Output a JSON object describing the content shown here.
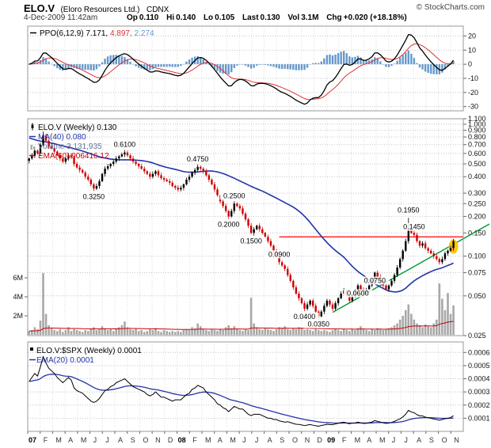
{
  "header": {
    "symbol": "ELO.V",
    "company": "(Eloro Resources Ltd.)",
    "exchange": "CDNX",
    "copyright": "© StockCharts.com",
    "datetime": "4-Dec-2009 11:42am",
    "quote": [
      {
        "label": "Op",
        "value": "0.110"
      },
      {
        "label": "Hi",
        "value": "0.140"
      },
      {
        "label": "Lo",
        "value": "0.105"
      },
      {
        "label": "Last",
        "value": "0.130"
      },
      {
        "label": "Vol",
        "value": "3.1M"
      },
      {
        "label": "Chg",
        "value": "+0.020 (+18.18%)"
      }
    ]
  },
  "colors": {
    "up": "#000000",
    "down": "#cc0000",
    "ma": "#2233aa",
    "vol_bar": "#a8a8a8",
    "vol_ema": "#cc0000",
    "vol_legend": "#667799",
    "ppo_line": "#000000",
    "ppo_signal": "#dd3333",
    "ppo_hist": "#6699cc",
    "ratio_line": "#000000",
    "ratio_ema": "#2233aa",
    "resistance": "#ff0000",
    "trendline": "#009933",
    "highlight": "#ffc20e",
    "grid": "#c4c4c4",
    "month_grid": "#dcdcdc",
    "border": "#999999",
    "tick_text": "#111111"
  },
  "panels": {
    "ppo": {
      "legend_name": "PPO(6,12,9)",
      "legend_values": [
        "7.171",
        "4.897",
        "2.274"
      ],
      "yticks": [
        "20",
        "10",
        "0",
        "-10",
        "-20",
        "-30"
      ]
    },
    "price": {
      "legend_rows": [
        {
          "text": "ELO.V (Weekly) 0.130"
        },
        {
          "text": "MA(40) 0.080"
        },
        {
          "text": "Volume 3,131,935"
        },
        {
          "text": "EMA(60) 906416.12"
        }
      ],
      "yticks": [
        "1.100",
        "1.000",
        "0.900",
        "0.800",
        "0.700",
        "0.600",
        "0.500",
        "0.400",
        "0.300",
        "0.250",
        "0.200",
        "0.150",
        "0.100",
        "0.075",
        "0.050",
        "0.025"
      ],
      "vol_ticks": [
        {
          "t": "6M",
          "v": 6
        },
        {
          "t": "4M",
          "v": 4
        },
        {
          "t": "2M",
          "v": 2
        }
      ]
    },
    "ratio": {
      "legend_rows": [
        {
          "text": "ELO.V:$SPX (Weekly) 0.0001"
        },
        {
          "text": "EMA(20) 0.0001"
        }
      ],
      "yticks": [
        "0.0006",
        "0.0005",
        "0.0004",
        "0.0003",
        "0.0002",
        "0.0001"
      ]
    }
  },
  "x_axis": {
    "labels": [
      "07",
      "F",
      "M",
      "A",
      "M",
      "J",
      "J",
      "A",
      "S",
      "O",
      "N",
      "D",
      "08",
      "F",
      "M",
      "A",
      "M",
      "J",
      "J",
      "A",
      "S",
      "O",
      "N",
      "D",
      "09",
      "F",
      "M",
      "A",
      "M",
      "J",
      "J",
      "A",
      "S",
      "O",
      "N"
    ]
  },
  "chart_data": {
    "type": "candlestick",
    "freq": "weekly",
    "range": "Jan 2007 - Dec 2009",
    "price_axis_log_range": [
      0.025,
      1.1
    ],
    "overlays": {
      "ma_period": 40,
      "volume_ema_period": 60,
      "ppo_params": [
        6,
        12,
        9
      ],
      "ratio_ema_period": 20
    },
    "close": [
      0.55,
      0.58,
      0.63,
      0.6,
      0.7,
      0.82,
      0.75,
      0.68,
      0.66,
      0.62,
      0.58,
      0.55,
      0.52,
      0.55,
      0.58,
      0.56,
      0.5,
      0.47,
      0.45,
      0.43,
      0.4,
      0.38,
      0.35,
      0.325,
      0.34,
      0.37,
      0.42,
      0.46,
      0.48,
      0.5,
      0.52,
      0.55,
      0.57,
      0.59,
      0.61,
      0.58,
      0.55,
      0.52,
      0.5,
      0.48,
      0.46,
      0.44,
      0.42,
      0.4,
      0.42,
      0.44,
      0.41,
      0.39,
      0.38,
      0.37,
      0.36,
      0.34,
      0.33,
      0.32,
      0.33,
      0.35,
      0.38,
      0.4,
      0.43,
      0.45,
      0.475,
      0.46,
      0.44,
      0.41,
      0.38,
      0.35,
      0.32,
      0.29,
      0.26,
      0.24,
      0.22,
      0.2,
      0.22,
      0.25,
      0.24,
      0.23,
      0.21,
      0.19,
      0.17,
      0.15,
      0.16,
      0.17,
      0.16,
      0.15,
      0.14,
      0.13,
      0.12,
      0.11,
      0.1,
      0.09,
      0.085,
      0.08,
      0.072,
      0.065,
      0.058,
      0.052,
      0.048,
      0.044,
      0.04,
      0.043,
      0.046,
      0.042,
      0.038,
      0.035,
      0.038,
      0.042,
      0.046,
      0.043,
      0.04,
      0.044,
      0.048,
      0.052,
      0.055,
      0.05,
      0.046,
      0.05,
      0.055,
      0.06,
      0.056,
      0.052,
      0.056,
      0.06,
      0.065,
      0.075,
      0.07,
      0.065,
      0.06,
      0.056,
      0.06,
      0.065,
      0.072,
      0.082,
      0.095,
      0.11,
      0.13,
      0.16,
      0.15,
      0.145,
      0.13,
      0.12,
      0.125,
      0.115,
      0.11,
      0.105,
      0.1,
      0.095,
      0.09,
      0.095,
      0.105,
      0.11,
      0.115,
      0.13
    ],
    "high_overrides": {
      "6": 0.88,
      "136": 0.195
    },
    "volume_m": [
      0.4,
      0.5,
      0.8,
      0.6,
      1.5,
      6.5,
      2.2,
      1.0,
      0.7,
      0.5,
      0.4,
      0.6,
      0.3,
      0.5,
      0.8,
      0.4,
      0.6,
      0.5,
      0.4,
      0.3,
      0.5,
      0.4,
      0.6,
      0.8,
      0.5,
      0.6,
      0.9,
      0.7,
      0.5,
      0.6,
      0.4,
      0.7,
      0.8,
      1.0,
      1.4,
      0.8,
      0.6,
      0.5,
      0.7,
      0.4,
      0.5,
      0.3,
      0.4,
      0.6,
      0.5,
      0.7,
      0.4,
      0.3,
      0.5,
      0.4,
      0.3,
      0.4,
      0.3,
      0.4,
      0.3,
      0.5,
      0.6,
      0.5,
      0.8,
      0.7,
      1.2,
      0.9,
      0.6,
      0.5,
      0.4,
      0.6,
      0.5,
      0.4,
      0.6,
      0.5,
      0.8,
      1.0,
      0.7,
      0.9,
      0.6,
      0.5,
      0.4,
      0.6,
      0.5,
      3.9,
      1.2,
      0.8,
      0.6,
      0.5,
      0.7,
      0.6,
      0.5,
      0.4,
      0.6,
      0.8,
      0.7,
      0.9,
      0.6,
      0.5,
      0.7,
      0.6,
      0.8,
      0.7,
      0.5,
      0.6,
      0.5,
      0.4,
      0.6,
      0.5,
      0.4,
      0.5,
      0.4,
      0.3,
      0.5,
      0.6,
      0.5,
      0.4,
      0.6,
      0.5,
      0.4,
      0.6,
      0.5,
      0.7,
      0.9,
      0.6,
      0.5,
      0.4,
      0.6,
      0.5,
      0.7,
      0.6,
      0.5,
      0.6,
      0.7,
      0.8,
      1.0,
      1.2,
      1.6,
      2.0,
      2.6,
      3.2,
      2.2,
      1.6,
      1.2,
      1.0,
      0.8,
      1.1,
      0.9,
      0.8,
      1.2,
      1.6,
      5.4,
      3.8,
      2.6,
      4.4,
      2.2,
      3.1
    ],
    "pre_close": [
      1.1,
      1.08,
      1.05,
      1.07,
      1.02,
      1.0,
      0.98,
      1.0,
      0.96,
      0.93,
      0.95,
      0.9,
      0.88,
      0.9,
      0.86,
      0.84,
      0.86,
      0.82,
      0.8,
      0.82,
      0.78,
      0.76,
      0.78,
      0.74,
      0.72,
      0.74,
      0.7,
      0.68,
      0.7,
      0.66,
      0.64,
      0.66,
      0.62,
      0.6,
      0.62,
      0.58,
      0.56,
      0.58,
      0.55,
      0.56
    ],
    "ratio_unit": 0.0001,
    "ratio_x10k": [
      3.8,
      4.1,
      4.4,
      4.2,
      4.9,
      5.7,
      5.2,
      4.8,
      4.6,
      4.4,
      4.1,
      3.9,
      3.7,
      3.9,
      4.1,
      3.9,
      3.3,
      3.1,
      3.0,
      2.9,
      2.7,
      2.5,
      2.3,
      2.2,
      2.3,
      2.5,
      2.8,
      3.1,
      3.2,
      3.4,
      3.5,
      3.7,
      3.8,
      3.9,
      4.0,
      3.8,
      3.6,
      3.4,
      3.3,
      3.2,
      3.1,
      3.0,
      2.8,
      2.7,
      2.8,
      3.0,
      2.8,
      2.6,
      2.6,
      2.5,
      2.4,
      2.3,
      2.4,
      2.4,
      2.4,
      2.6,
      2.8,
      2.9,
      3.2,
      3.3,
      3.5,
      3.4,
      3.3,
      3.0,
      2.8,
      2.6,
      2.4,
      2.1,
      2.0,
      1.8,
      1.7,
      1.5,
      1.7,
      1.9,
      1.8,
      1.7,
      1.7,
      1.5,
      1.3,
      1.2,
      1.3,
      1.3,
      1.3,
      1.2,
      1.1,
      1.0,
      1.0,
      0.9,
      0.9,
      0.8,
      0.75,
      0.7,
      0.74,
      0.67,
      0.6,
      0.54,
      0.53,
      0.49,
      0.44,
      0.48,
      0.52,
      0.47,
      0.43,
      0.39,
      0.45,
      0.49,
      0.54,
      0.51,
      0.51,
      0.56,
      0.62,
      0.67,
      0.7,
      0.63,
      0.58,
      0.63,
      0.64,
      0.7,
      0.65,
      0.6,
      0.62,
      0.66,
      0.71,
      0.82,
      0.76,
      0.71,
      0.65,
      0.61,
      0.63,
      0.68,
      0.76,
      0.86,
      0.95,
      1.1,
      1.3,
      1.6,
      1.47,
      1.42,
      1.27,
      1.18,
      1.18,
      1.08,
      1.04,
      0.99,
      0.94,
      0.9,
      0.85,
      0.9,
      0.96,
      1.0,
      1.05,
      1.19
    ],
    "annotations": {
      "price_labels": [
        {
          "week": 35,
          "price": 0.61,
          "pos": "above",
          "text": "0.6100"
        },
        {
          "week": 24,
          "price": 0.325,
          "pos": "below",
          "text": "0.3250"
        },
        {
          "week": 61,
          "price": 0.475,
          "pos": "above",
          "text": "0.4750"
        },
        {
          "week": 74,
          "price": 0.25,
          "pos": "above",
          "text": "0.2500"
        },
        {
          "week": 72,
          "price": 0.2,
          "pos": "below",
          "text": "0.2000"
        },
        {
          "week": 80,
          "price": 0.15,
          "pos": "below",
          "text": "0.1500"
        },
        {
          "week": 90,
          "price": 0.09,
          "pos": "above",
          "text": "0.0900"
        },
        {
          "week": 99,
          "price": 0.04,
          "pos": "below",
          "text": "0.0400"
        },
        {
          "week": 104,
          "price": 0.035,
          "pos": "below",
          "text": "0.0350"
        },
        {
          "week": 118,
          "price": 0.06,
          "pos": "below",
          "text": "0.0600"
        },
        {
          "week": 124,
          "price": 0.075,
          "pos": "below",
          "text": "0.0750"
        },
        {
          "week": 136,
          "price": 0.195,
          "pos": "above",
          "text": "0.1950"
        },
        {
          "week": 138,
          "price": 0.145,
          "pos": "above",
          "text": "0.1450"
        }
      ],
      "resistance": {
        "price": 0.14,
        "from_week": 90
      },
      "trendline": {
        "w1": 109,
        "p1": 0.0375,
        "w2": 152,
        "p2": 0.123
      },
      "highlight": {
        "week": 152,
        "price": 0.118
      }
    }
  }
}
